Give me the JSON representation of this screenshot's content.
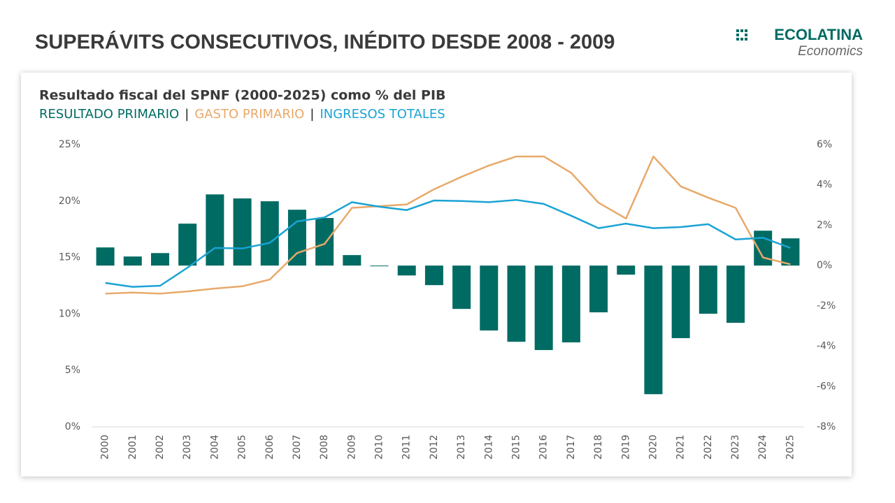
{
  "header": {
    "title": "SUPERÁVITS CONSECUTIVOS, INÉDITO DESDE 2008 - 2009",
    "brand": "ECOLATINA",
    "tagline": "Economics"
  },
  "chart_data": {
    "type": "bar-line",
    "title": "Resultado fiscal del SPNF (2000-2025) como % del PIB",
    "legend_separator": "|",
    "categories": [
      "2000",
      "2001",
      "2002",
      "2003",
      "2004",
      "2005",
      "2006",
      "2007",
      "2008",
      "2009",
      "2010",
      "2011",
      "2012",
      "2013",
      "2014",
      "2015",
      "2016",
      "2017",
      "2018",
      "2019",
      "2020",
      "2021",
      "2022",
      "2023",
      "2024",
      "2025"
    ],
    "series": [
      {
        "name": "RESULTADO PRIMARIO",
        "type": "bar",
        "axis": "y2",
        "color": "#006b63",
        "values": [
          0.9,
          0.45,
          0.62,
          2.08,
          3.53,
          3.33,
          3.19,
          2.77,
          2.36,
          0.52,
          -0.03,
          -0.49,
          -0.97,
          -2.15,
          -3.22,
          -3.78,
          -4.19,
          -3.81,
          -2.32,
          -0.45,
          -6.38,
          -3.6,
          -2.39,
          -2.84,
          1.73,
          1.35
        ]
      },
      {
        "name": "GASTO PRIMARIO",
        "type": "line",
        "color": "#e8a96a",
        "values": [
          11.8,
          11.9,
          11.8,
          12.0,
          12.25,
          12.45,
          13.05,
          15.4,
          16.2,
          19.4,
          19.55,
          19.7,
          21.05,
          22.15,
          23.15,
          23.95,
          23.95,
          22.5,
          19.85,
          18.45,
          23.95,
          21.3,
          20.3,
          19.4,
          15.0,
          14.4
        ]
      },
      {
        "name": "INGRESOS TOTALES",
        "type": "line",
        "color": "#1aa3d4",
        "values": [
          12.75,
          12.4,
          12.5,
          14.1,
          15.85,
          15.8,
          16.3,
          18.2,
          18.55,
          19.9,
          19.5,
          19.2,
          20.05,
          20.0,
          19.9,
          20.1,
          19.75,
          18.7,
          17.6,
          18.0,
          17.6,
          17.7,
          17.95,
          16.6,
          16.75,
          15.85
        ]
      }
    ],
    "ylim": [
      0,
      25
    ],
    "yticks": [
      {
        "value": 0,
        "label": "0%"
      },
      {
        "value": 5,
        "label": "5%"
      },
      {
        "value": 10,
        "label": "10%"
      },
      {
        "value": 15,
        "label": "15%"
      },
      {
        "value": 20,
        "label": "20%"
      },
      {
        "value": 25,
        "label": "25%"
      }
    ],
    "y2lim": [
      -8,
      6
    ],
    "y2ticks": [
      {
        "value": -8,
        "label": "-8%"
      },
      {
        "value": -6,
        "label": "-6%"
      },
      {
        "value": -4,
        "label": "-4%"
      },
      {
        "value": -2,
        "label": "-2%"
      },
      {
        "value": 0,
        "label": "0%"
      },
      {
        "value": 2,
        "label": "2%"
      },
      {
        "value": 4,
        "label": "4%"
      },
      {
        "value": 6,
        "label": "6%"
      }
    ],
    "grid": false
  }
}
